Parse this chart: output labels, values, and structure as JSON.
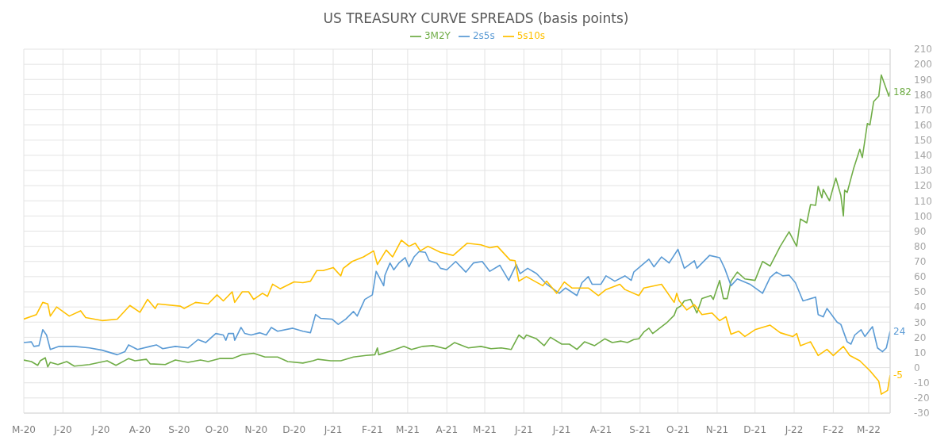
{
  "chart_data": {
    "type": "line",
    "title": "US TREASURY CURVE SPREADS (basis points)",
    "legend": "top",
    "grid": true,
    "xlim": [
      "2020-05-01",
      "2022-03-18"
    ],
    "xticks": [
      {
        "value": "2020-05-01",
        "label": "M-20"
      },
      {
        "value": "2020-06-01",
        "label": "J-20"
      },
      {
        "value": "2020-07-01",
        "label": "J-20"
      },
      {
        "value": "2020-08-01",
        "label": "A-20"
      },
      {
        "value": "2020-09-01",
        "label": "S-20"
      },
      {
        "value": "2020-10-01",
        "label": "O-20"
      },
      {
        "value": "2020-11-01",
        "label": "N-20"
      },
      {
        "value": "2020-12-01",
        "label": "D-20"
      },
      {
        "value": "2021-01-01",
        "label": "J-21"
      },
      {
        "value": "2021-02-01",
        "label": "F-21"
      },
      {
        "value": "2021-03-01",
        "label": "M-21"
      },
      {
        "value": "2021-04-01",
        "label": "A-21"
      },
      {
        "value": "2021-05-01",
        "label": "M-21"
      },
      {
        "value": "2021-06-01",
        "label": "J-21"
      },
      {
        "value": "2021-07-01",
        "label": "J-21"
      },
      {
        "value": "2021-08-01",
        "label": "A-21"
      },
      {
        "value": "2021-09-01",
        "label": "S-21"
      },
      {
        "value": "2021-10-01",
        "label": "O-21"
      },
      {
        "value": "2021-11-01",
        "label": "N-21"
      },
      {
        "value": "2021-12-01",
        "label": "D-21"
      },
      {
        "value": "2022-01-01",
        "label": "J-22"
      },
      {
        "value": "2022-02-01",
        "label": "F-22"
      },
      {
        "value": "2022-03-01",
        "label": "M-22"
      }
    ],
    "ylim": [
      -30,
      210
    ],
    "yticks": [
      -30,
      -20,
      -10,
      0,
      10,
      20,
      30,
      40,
      50,
      60,
      70,
      80,
      90,
      100,
      110,
      120,
      130,
      140,
      150,
      160,
      170,
      180,
      190,
      200,
      210
    ],
    "series": [
      {
        "name": "3M2Y",
        "color": "#70ad47",
        "x": [
          "2020-05-01",
          "2020-05-07",
          "2020-05-12",
          "2020-05-14",
          "2020-05-18",
          "2020-05-20",
          "2020-05-22",
          "2020-05-28",
          "2020-06-04",
          "2020-06-10",
          "2020-06-22",
          "2020-07-06",
          "2020-07-13",
          "2020-07-23",
          "2020-07-28",
          "2020-08-06",
          "2020-08-09",
          "2020-08-21",
          "2020-08-29",
          "2020-09-08",
          "2020-09-18",
          "2020-09-24",
          "2020-10-03",
          "2020-10-13",
          "2020-10-21",
          "2020-10-30",
          "2020-11-08",
          "2020-11-18",
          "2020-11-26",
          "2020-12-08",
          "2020-12-16",
          "2020-12-20",
          "2020-12-30",
          "2021-01-07",
          "2021-01-17",
          "2021-01-27",
          "2021-02-03",
          "2021-02-05",
          "2021-02-06",
          "2021-02-16",
          "2021-02-26",
          "2021-03-04",
          "2021-03-13",
          "2021-03-21",
          "2021-03-31",
          "2021-04-07",
          "2021-04-18",
          "2021-04-28",
          "2021-05-06",
          "2021-05-14",
          "2021-05-22",
          "2021-05-28",
          "2021-06-01",
          "2021-06-03",
          "2021-06-11",
          "2021-06-17",
          "2021-06-22",
          "2021-07-01",
          "2021-07-07",
          "2021-07-13",
          "2021-07-19",
          "2021-07-27",
          "2021-08-04",
          "2021-08-10",
          "2021-08-17",
          "2021-08-22",
          "2021-08-27",
          "2021-08-31",
          "2021-09-04",
          "2021-09-08",
          "2021-09-11",
          "2021-09-22",
          "2021-09-28",
          "2021-09-30",
          "2021-10-03",
          "2021-10-06",
          "2021-10-11",
          "2021-10-16",
          "2021-10-20",
          "2021-10-27",
          "2021-10-29",
          "2021-11-03",
          "2021-11-06",
          "2021-11-09",
          "2021-11-12",
          "2021-11-17",
          "2021-11-23",
          "2021-12-01",
          "2021-12-07",
          "2021-12-13",
          "2021-12-21",
          "2021-12-28",
          "2022-01-03",
          "2022-01-06",
          "2022-01-11",
          "2022-01-14",
          "2022-01-18",
          "2022-01-20",
          "2022-01-23",
          "2022-01-24",
          "2022-01-29",
          "2022-02-03",
          "2022-02-07",
          "2022-02-09",
          "2022-02-10",
          "2022-02-12",
          "2022-02-17",
          "2022-02-22",
          "2022-02-24",
          "2022-02-28",
          "2022-03-02",
          "2022-03-05",
          "2022-03-09",
          "2022-03-11",
          "2022-03-17",
          "2022-03-18"
        ],
        "values": [
          5,
          4,
          1.5,
          4.5,
          6.5,
          0.5,
          3.5,
          2,
          4,
          1,
          2,
          4.5,
          1.5,
          6,
          4.5,
          5.5,
          2.5,
          2,
          5,
          3.5,
          5,
          4,
          6,
          6,
          8.5,
          9.5,
          7,
          7,
          4,
          3,
          4.5,
          5.5,
          4.5,
          4.5,
          7,
          8,
          8.5,
          13,
          8.5,
          11,
          14,
          12,
          14,
          14.5,
          12.5,
          16.5,
          13,
          14,
          12.5,
          13,
          12,
          21.5,
          19,
          21.5,
          19,
          14.5,
          20,
          15.5,
          15.5,
          12,
          17,
          14.5,
          19,
          16.5,
          17.5,
          16.5,
          18.5,
          19,
          23.5,
          26,
          22.5,
          29.5,
          34.5,
          39,
          40.5,
          44,
          45,
          36,
          45.5,
          47.5,
          45,
          57.5,
          45.5,
          45.5,
          57,
          63,
          58.5,
          57.5,
          70,
          67,
          80,
          89.5,
          80,
          98,
          95.5,
          107.5,
          107,
          119.5,
          112,
          117.5,
          110,
          125,
          113.5,
          100,
          117,
          115.5,
          131,
          144,
          138.5,
          161,
          160,
          175.5,
          179,
          193,
          179,
          182
        ]
      },
      {
        "name": "2s5s",
        "color": "#5b9bd5",
        "x": [
          "2020-05-01",
          "2020-05-07",
          "2020-05-09",
          "2020-05-13",
          "2020-05-16",
          "2020-05-19",
          "2020-05-22",
          "2020-05-29",
          "2020-06-10",
          "2020-06-22",
          "2020-07-02",
          "2020-07-14",
          "2020-07-20",
          "2020-07-23",
          "2020-07-30",
          "2020-08-09",
          "2020-08-14",
          "2020-08-19",
          "2020-08-29",
          "2020-09-08",
          "2020-09-16",
          "2020-09-22",
          "2020-09-30",
          "2020-10-06",
          "2020-10-08",
          "2020-10-10",
          "2020-10-14",
          "2020-10-15",
          "2020-10-20",
          "2020-10-23",
          "2020-10-28",
          "2020-11-04",
          "2020-11-09",
          "2020-11-13",
          "2020-11-18",
          "2020-11-30",
          "2020-12-08",
          "2020-12-14",
          "2020-12-18",
          "2020-12-22",
          "2020-12-31",
          "2021-01-05",
          "2021-01-11",
          "2021-01-17",
          "2021-01-20",
          "2021-01-26",
          "2021-02-01",
          "2021-02-04",
          "2021-02-10",
          "2021-02-11",
          "2021-02-15",
          "2021-02-18",
          "2021-02-22",
          "2021-02-27",
          "2021-03-02",
          "2021-03-06",
          "2021-03-10",
          "2021-03-15",
          "2021-03-18",
          "2021-03-24",
          "2021-03-27",
          "2021-04-01",
          "2021-04-08",
          "2021-04-16",
          "2021-04-22",
          "2021-04-29",
          "2021-05-05",
          "2021-05-13",
          "2021-05-20",
          "2021-05-26",
          "2021-05-29",
          "2021-06-04",
          "2021-06-11",
          "2021-06-19",
          "2021-06-29",
          "2021-07-04",
          "2021-07-13",
          "2021-07-17",
          "2021-07-22",
          "2021-07-25",
          "2021-08-01",
          "2021-08-05",
          "2021-08-12",
          "2021-08-20",
          "2021-08-25",
          "2021-08-27",
          "2021-09-03",
          "2021-09-08",
          "2021-09-12",
          "2021-09-18",
          "2021-09-24",
          "2021-10-01",
          "2021-10-06",
          "2021-10-14",
          "2021-10-16",
          "2021-10-26",
          "2021-11-03",
          "2021-11-07",
          "2021-11-12",
          "2021-11-17",
          "2021-11-27",
          "2021-12-07",
          "2021-12-13",
          "2021-12-18",
          "2021-12-23",
          "2021-12-28",
          "2022-01-02",
          "2022-01-08",
          "2022-01-18",
          "2022-01-20",
          "2022-01-24",
          "2022-01-27",
          "2022-02-04",
          "2022-02-07",
          "2022-02-12",
          "2022-02-15",
          "2022-02-18",
          "2022-02-23",
          "2022-02-26",
          "2022-03-04",
          "2022-03-08",
          "2022-03-12",
          "2022-03-15",
          "2022-03-18"
        ],
        "values": [
          16.5,
          17,
          14,
          14.5,
          25,
          21.5,
          12,
          14,
          14,
          13,
          11.5,
          8.5,
          10.5,
          15,
          12,
          14,
          15,
          12.5,
          14,
          13,
          18.5,
          16.5,
          22.5,
          21.5,
          18,
          22.5,
          22.5,
          18,
          26.5,
          22.5,
          21.5,
          23,
          21.5,
          26.5,
          24,
          26,
          24,
          23,
          35,
          32.5,
          32,
          28.5,
          32,
          37,
          34,
          45,
          48,
          63.5,
          54,
          61,
          69,
          64.5,
          69,
          72.5,
          66.5,
          73,
          76.5,
          76,
          70.5,
          69,
          65.5,
          64.5,
          70,
          63,
          69,
          70,
          63.5,
          67.5,
          57.5,
          68,
          62,
          65.5,
          62,
          55,
          49,
          52.5,
          47.5,
          56,
          60,
          55,
          55,
          60.5,
          57,
          60.5,
          57.5,
          63,
          68,
          71.5,
          66.5,
          73,
          69,
          78,
          65.5,
          70.5,
          65.5,
          74,
          72.5,
          65.5,
          54,
          58.5,
          55,
          49,
          59.5,
          63,
          60.5,
          61,
          56,
          44,
          46.5,
          35,
          33.5,
          39,
          30,
          28.5,
          17,
          15.5,
          21.5,
          25,
          20.5,
          27,
          13,
          10.5,
          13,
          24
        ]
      },
      {
        "name": "5s10s",
        "color": "#ffc000",
        "x": [
          "2020-05-01",
          "2020-05-11",
          "2020-05-16",
          "2020-05-20",
          "2020-05-22",
          "2020-05-27",
          "2020-06-06",
          "2020-06-15",
          "2020-06-19",
          "2020-07-02",
          "2020-07-14",
          "2020-07-24",
          "2020-08-01",
          "2020-08-07",
          "2020-08-13",
          "2020-08-15",
          "2020-09-02",
          "2020-09-05",
          "2020-09-14",
          "2020-09-24",
          "2020-10-01",
          "2020-10-06",
          "2020-10-13",
          "2020-10-15",
          "2020-10-21",
          "2020-10-26",
          "2020-10-30",
          "2020-11-06",
          "2020-11-10",
          "2020-11-14",
          "2020-11-20",
          "2020-12-01",
          "2020-12-08",
          "2020-12-14",
          "2020-12-19",
          "2020-12-24",
          "2021-01-01",
          "2021-01-07",
          "2021-01-09",
          "2021-01-16",
          "2021-01-25",
          "2021-02-02",
          "2021-02-05",
          "2021-02-12",
          "2021-02-17",
          "2021-02-24",
          "2021-03-02",
          "2021-03-07",
          "2021-03-11",
          "2021-03-17",
          "2021-03-27",
          "2021-04-06",
          "2021-04-17",
          "2021-04-28",
          "2021-05-05",
          "2021-05-11",
          "2021-05-21",
          "2021-05-25",
          "2021-05-28",
          "2021-06-03",
          "2021-06-16",
          "2021-06-19",
          "2021-06-27",
          "2021-07-03",
          "2021-07-09",
          "2021-07-22",
          "2021-07-30",
          "2021-08-05",
          "2021-08-16",
          "2021-08-20",
          "2021-08-31",
          "2021-09-04",
          "2021-09-18",
          "2021-09-28",
          "2021-09-30",
          "2021-10-02",
          "2021-10-08",
          "2021-10-14",
          "2021-10-20",
          "2021-10-28",
          "2021-11-03",
          "2021-11-08",
          "2021-11-12",
          "2021-11-18",
          "2021-11-23",
          "2021-12-01",
          "2021-12-13",
          "2021-12-21",
          "2021-12-31",
          "2022-01-03",
          "2022-01-06",
          "2022-01-14",
          "2022-01-20",
          "2022-01-27",
          "2022-02-01",
          "2022-02-09",
          "2022-02-14",
          "2022-02-22",
          "2022-03-02",
          "2022-03-09",
          "2022-03-11",
          "2022-03-16",
          "2022-03-18"
        ],
        "values": [
          32,
          35,
          43,
          42,
          34,
          40,
          34,
          37.5,
          33,
          31,
          32,
          41,
          36.5,
          45,
          39,
          42,
          40.5,
          39,
          43,
          42,
          48,
          44,
          50,
          43,
          50,
          50,
          45,
          49,
          47,
          55,
          52,
          56.5,
          56,
          57,
          64,
          64,
          66,
          60.5,
          65.5,
          70,
          73,
          77,
          68,
          77.5,
          73,
          84,
          80,
          82,
          77,
          80,
          76,
          74,
          82,
          81,
          79,
          80,
          71,
          70.5,
          57,
          60,
          54,
          57,
          49,
          56.5,
          52.5,
          52.5,
          47.5,
          51.5,
          55,
          51.5,
          47.5,
          52.5,
          55,
          43,
          49,
          44,
          38,
          41.5,
          35,
          36,
          31,
          33.5,
          22,
          24,
          20.5,
          25,
          28,
          23,
          20.5,
          22.5,
          14.5,
          17,
          8,
          12,
          8,
          14,
          8,
          4.5,
          -2,
          -9,
          -17.5,
          -15,
          -5
        ]
      }
    ],
    "annotations": [
      {
        "text": "182",
        "x": "2022-03-18",
        "y": 182
      },
      {
        "text": "24",
        "x": "2022-03-18",
        "y": 24
      },
      {
        "text": "-5",
        "x": "2022-03-18",
        "y": -5
      }
    ]
  }
}
